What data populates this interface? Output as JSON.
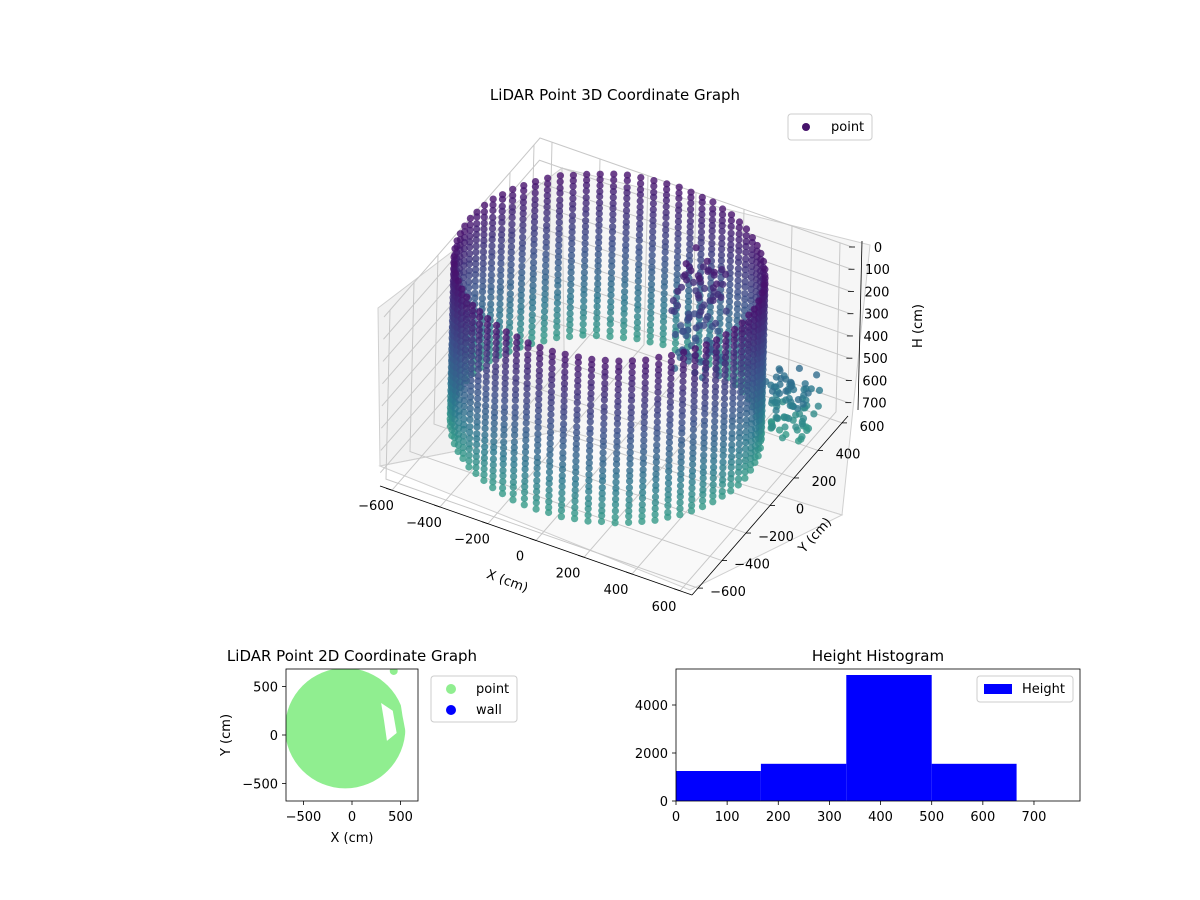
{
  "chart_data": [
    {
      "type": "scatter",
      "title": "LiDAR Point 3D Coordinate Graph",
      "xlabel": "X (cm)",
      "ylabel": "Y (cm)",
      "zlabel": "H (cm)",
      "x_ticks": [
        "−600",
        "−400",
        "−200",
        "0",
        "200",
        "400",
        "600"
      ],
      "y_ticks": [
        "−600",
        "−400",
        "−200",
        "0",
        "200",
        "400",
        "600"
      ],
      "z_ticks": [
        "0",
        "100",
        "200",
        "300",
        "400",
        "500",
        "600",
        "700"
      ],
      "xlim": [
        -650,
        650
      ],
      "ylim": [
        -650,
        650
      ],
      "zlim": [
        0,
        760
      ],
      "z_inverted": true,
      "legend": {
        "entries": [
          "point"
        ],
        "placement": "upper right"
      },
      "color_scheme": "viridis (by height)",
      "series": [
        {
          "name": "point",
          "shape": "cylindrical wall of points",
          "center_xy": [
            -70,
            70
          ],
          "radius": 580,
          "height_range": [
            0,
            740
          ],
          "extra_clusters": [
            {
              "x": 200,
              "y": 300,
              "h_range": [
                0,
                500
              ]
            },
            {
              "x": 520,
              "y": 420,
              "h_range": [
                500,
                740
              ]
            }
          ]
        }
      ]
    },
    {
      "type": "scatter",
      "title": "LiDAR Point 2D Coordinate Graph",
      "xlabel": "X (cm)",
      "ylabel": "Y (cm)",
      "x_ticks": [
        "−500",
        "0",
        "500"
      ],
      "y_ticks": [
        "−500",
        "0",
        "500"
      ],
      "xlim": [
        -680,
        680
      ],
      "ylim": [
        -680,
        680
      ],
      "legend": {
        "entries": [
          "point",
          "wall"
        ],
        "placement": "outside right"
      },
      "series": [
        {
          "name": "point",
          "color": "#90ee90",
          "center_xy": [
            -70,
            70
          ],
          "radius": 620
        },
        {
          "name": "wall",
          "color": "#0000ff",
          "values": []
        }
      ]
    },
    {
      "type": "bar",
      "title": "Height Histogram",
      "x_ticks": [
        "0",
        "100",
        "200",
        "300",
        "400",
        "500",
        "600",
        "700"
      ],
      "y_ticks": [
        "0",
        "2000",
        "4000"
      ],
      "xlim": [
        0,
        790
      ],
      "ylim": [
        0,
        5500
      ],
      "bin_edges": [
        0,
        166,
        333,
        500,
        666
      ],
      "values": [
        1250,
        1550,
        5250,
        1550
      ],
      "color": "#0000ff",
      "legend": {
        "entries": [
          "Height"
        ],
        "placement": "upper right"
      }
    }
  ]
}
